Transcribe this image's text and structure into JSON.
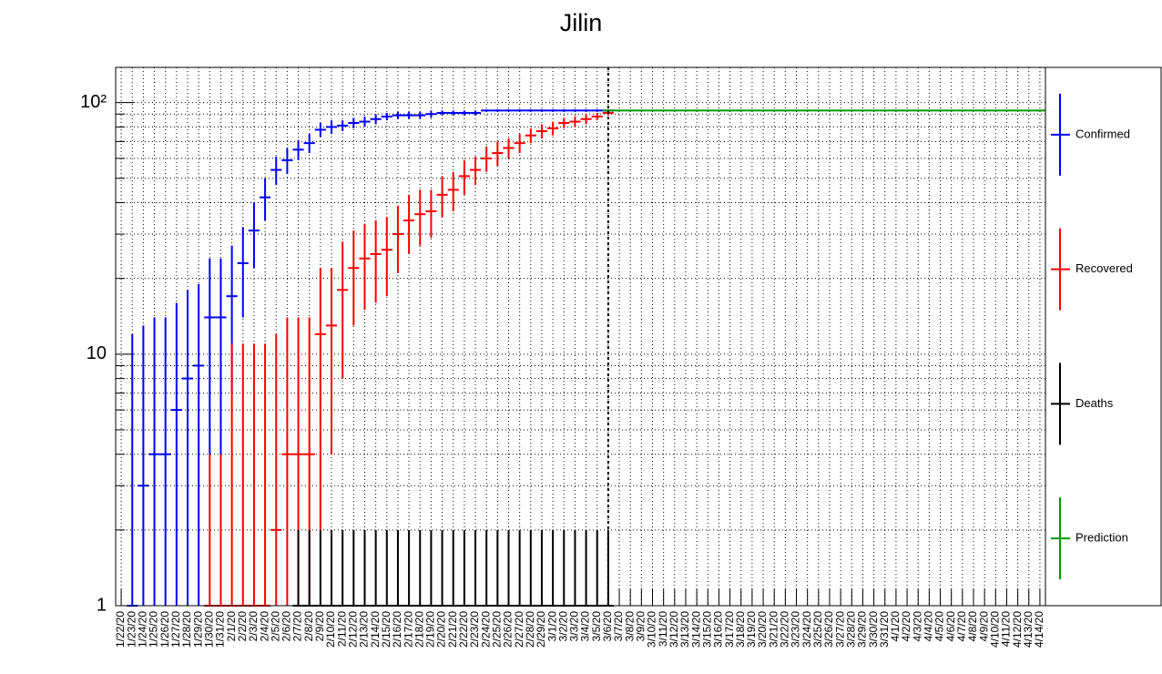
{
  "chart_data": {
    "type": "errorbar",
    "title": "Jilin",
    "log_y": true,
    "grid": true,
    "legend": "right",
    "categories": [
      "1/22/20",
      "1/23/20",
      "1/24/20",
      "1/25/20",
      "1/26/20",
      "1/27/20",
      "1/28/20",
      "1/29/20",
      "1/30/20",
      "1/31/20",
      "2/1/20",
      "2/2/20",
      "2/3/20",
      "2/4/20",
      "2/5/20",
      "2/6/20",
      "2/7/20",
      "2/8/20",
      "2/9/20",
      "2/10/20",
      "2/11/20",
      "2/12/20",
      "2/13/20",
      "2/14/20",
      "2/15/20",
      "2/16/20",
      "2/17/20",
      "2/18/20",
      "2/19/20",
      "2/20/20",
      "2/21/20",
      "2/22/20",
      "2/23/20",
      "2/24/20",
      "2/25/20",
      "2/26/20",
      "2/27/20",
      "2/28/20",
      "2/29/20",
      "3/1/20",
      "3/2/20",
      "3/3/20",
      "3/4/20",
      "3/5/20",
      "3/6/20",
      "3/7/20",
      "3/8/20",
      "3/9/20",
      "3/10/20",
      "3/11/20",
      "3/12/20",
      "3/13/20",
      "3/14/20",
      "3/15/20",
      "3/16/20",
      "3/17/20",
      "3/18/20",
      "3/19/20",
      "3/20/20",
      "3/21/20",
      "3/22/20",
      "3/23/20",
      "3/24/20",
      "3/25/20",
      "3/26/20",
      "3/27/20",
      "3/28/20",
      "3/29/20",
      "3/30/20",
      "3/31/20",
      "4/1/20",
      "4/2/20",
      "4/3/20",
      "4/4/20",
      "4/5/20",
      "4/6/20",
      "4/7/20",
      "4/8/20",
      "4/9/20",
      "4/10/20",
      "4/11/20",
      "4/12/20",
      "4/13/20",
      "4/14/20"
    ],
    "ylim": [
      1,
      138
    ],
    "yticks": [
      1,
      10,
      {
        "value": 100,
        "label": "10²"
      }
    ],
    "series": [
      {
        "name": "Confirmed",
        "color": "#0000ff",
        "values": [
          null,
          1,
          3,
          4,
          4,
          6,
          8,
          9,
          14,
          14,
          17,
          23,
          31,
          42,
          54,
          59,
          65,
          69,
          78,
          80,
          81,
          83,
          84,
          86,
          88,
          89,
          89,
          89,
          90,
          91,
          91,
          91,
          91,
          93,
          93,
          93,
          93,
          93,
          93,
          93,
          93,
          93,
          93,
          93,
          93,
          null,
          null,
          null,
          null,
          null,
          null,
          null,
          null,
          null,
          null,
          null,
          null,
          null,
          null,
          null,
          null,
          null,
          null,
          null,
          null,
          null,
          null,
          null,
          null,
          null,
          null,
          null,
          null,
          null,
          null,
          null,
          null,
          null,
          null,
          null,
          null,
          null,
          null,
          null
        ],
        "errors": [
          null,
          11,
          10,
          10,
          10,
          10,
          10,
          10,
          10,
          10,
          10,
          9,
          9,
          8,
          7,
          7,
          6,
          6,
          5,
          5,
          4,
          4,
          4,
          4,
          3,
          3,
          3,
          3,
          3,
          2,
          2,
          2,
          2,
          1,
          1,
          1,
          1,
          1,
          1,
          1,
          1,
          1,
          1,
          1,
          1,
          null,
          null,
          null,
          null,
          null,
          null,
          null,
          null,
          null,
          null,
          null,
          null,
          null,
          null,
          null,
          null,
          null,
          null,
          null,
          null,
          null,
          null,
          null,
          null,
          null,
          null,
          null,
          null,
          null,
          null,
          null,
          null,
          null,
          null,
          null,
          null,
          null,
          null,
          null
        ]
      },
      {
        "name": "Recovered",
        "color": "#ff0000",
        "values": [
          null,
          null,
          null,
          null,
          null,
          null,
          null,
          null,
          1,
          1,
          1,
          1,
          1,
          1,
          2,
          4,
          4,
          4,
          12,
          13,
          18,
          22,
          24,
          25,
          26,
          30,
          34,
          36,
          37,
          43,
          45,
          51,
          54,
          60,
          63,
          66,
          69,
          74,
          77,
          79,
          83,
          84,
          86,
          88,
          91,
          null,
          null,
          null,
          null,
          null,
          null,
          null,
          null,
          null,
          null,
          null,
          null,
          null,
          null,
          null,
          null,
          null,
          null,
          null,
          null,
          null,
          null,
          null,
          null,
          null,
          null,
          null,
          null,
          null,
          null,
          null,
          null,
          null,
          null,
          null,
          null,
          null,
          null,
          null
        ],
        "errors": [
          null,
          null,
          null,
          null,
          null,
          null,
          null,
          null,
          3,
          3,
          10,
          10,
          10,
          10,
          10,
          10,
          10,
          10,
          10,
          9,
          10,
          9,
          9,
          9,
          9,
          9,
          9,
          9,
          8,
          8,
          8,
          8,
          7,
          7,
          7,
          6,
          6,
          5,
          5,
          5,
          4,
          4,
          4,
          3,
          2,
          null,
          null,
          null,
          null,
          null,
          null,
          null,
          null,
          null,
          null,
          null,
          null,
          null,
          null,
          null,
          null,
          null,
          null,
          null,
          null,
          null,
          null,
          null,
          null,
          null,
          null,
          null,
          null,
          null,
          null,
          null,
          null,
          null,
          null,
          null,
          null,
          null,
          null,
          null
        ]
      },
      {
        "name": "Deaths",
        "color": "#000000",
        "values": [
          null,
          null,
          null,
          null,
          null,
          null,
          null,
          null,
          null,
          null,
          null,
          null,
          null,
          null,
          null,
          null,
          1,
          1,
          1,
          1,
          1,
          1,
          1,
          1,
          1,
          1,
          1,
          1,
          1,
          1,
          1,
          1,
          1,
          1,
          1,
          1,
          1,
          1,
          1,
          1,
          1,
          1,
          1,
          1,
          1,
          null,
          null,
          null,
          null,
          null,
          null,
          null,
          null,
          null,
          null,
          null,
          null,
          null,
          null,
          null,
          null,
          null,
          null,
          null,
          null,
          null,
          null,
          null,
          null,
          null,
          null,
          null,
          null,
          null,
          null,
          null,
          null,
          null,
          null,
          null,
          null,
          null,
          null,
          null
        ],
        "errors": [
          null,
          null,
          null,
          null,
          null,
          null,
          null,
          null,
          null,
          null,
          null,
          null,
          null,
          null,
          null,
          null,
          1,
          1,
          1,
          1,
          1,
          1,
          1,
          1,
          1,
          1,
          1,
          1,
          1,
          1,
          1,
          1,
          1,
          1,
          1,
          1,
          1,
          1,
          1,
          1,
          1,
          1,
          1,
          1,
          1,
          null,
          null,
          null,
          null,
          null,
          null,
          null,
          null,
          null,
          null,
          null,
          null,
          null,
          null,
          null,
          null,
          null,
          null,
          null,
          null,
          null,
          null,
          null,
          null,
          null,
          null,
          null,
          null,
          null,
          null,
          null,
          null,
          null,
          null,
          null,
          null,
          null,
          null,
          null
        ]
      },
      {
        "name": "Prediction",
        "color": "#009900",
        "values": [
          null,
          null,
          null,
          null,
          null,
          null,
          null,
          null,
          null,
          null,
          null,
          null,
          null,
          null,
          null,
          null,
          null,
          null,
          null,
          null,
          null,
          null,
          null,
          null,
          null,
          null,
          null,
          null,
          null,
          null,
          null,
          null,
          null,
          null,
          null,
          null,
          null,
          null,
          null,
          null,
          null,
          null,
          null,
          null,
          93,
          93,
          93,
          93,
          93,
          93,
          93,
          93,
          93,
          93,
          93,
          93,
          93,
          93,
          93,
          93,
          93,
          93,
          93,
          93,
          93,
          93,
          93,
          93,
          93,
          93,
          93,
          93,
          93,
          93,
          93,
          93,
          93,
          93,
          93,
          93,
          93,
          93,
          93,
          93
        ]
      }
    ]
  }
}
